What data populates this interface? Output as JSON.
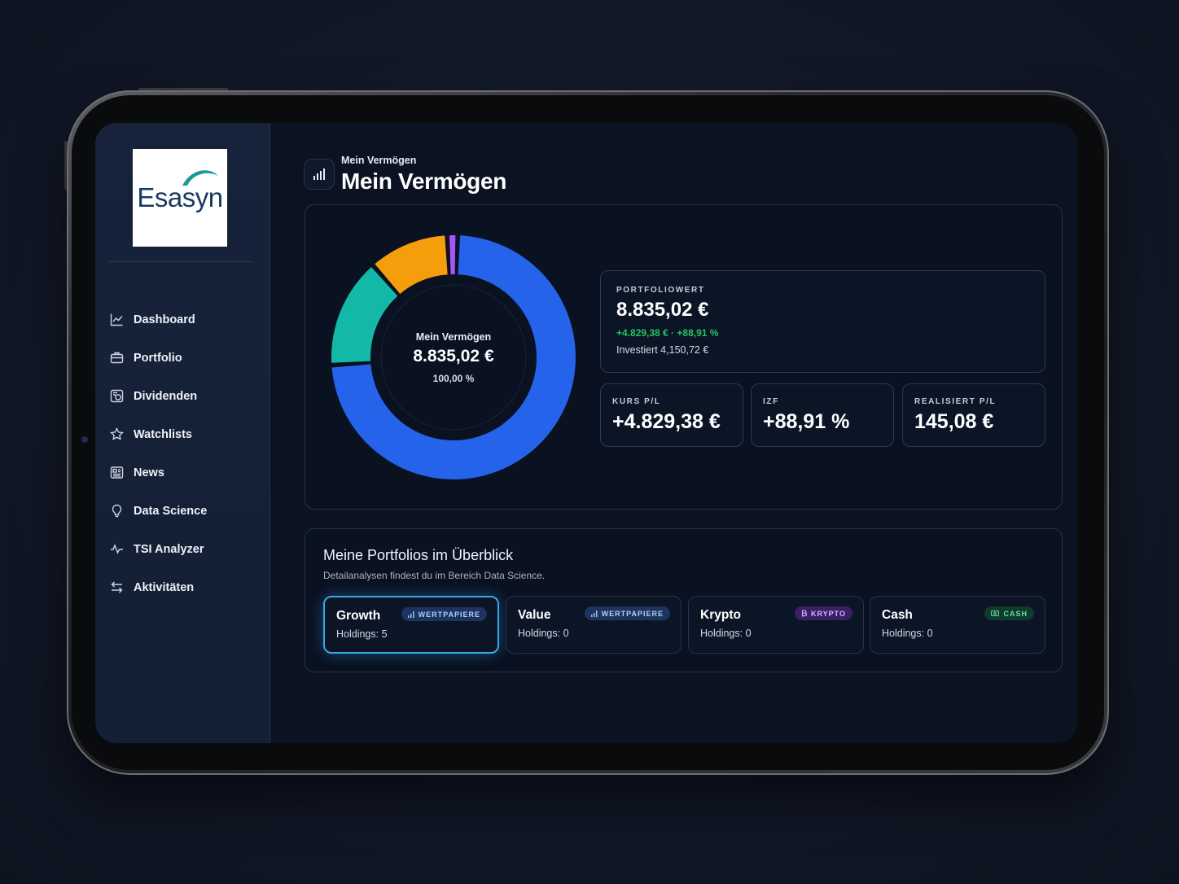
{
  "app": {
    "logo_text": "Esasyn"
  },
  "sidebar": {
    "items": [
      {
        "label": "Dashboard",
        "icon": "chart-line-icon"
      },
      {
        "label": "Portfolio",
        "icon": "briefcase-icon"
      },
      {
        "label": "Dividenden",
        "icon": "dividend-icon"
      },
      {
        "label": "Watchlists",
        "icon": "star-icon"
      },
      {
        "label": "News",
        "icon": "newspaper-icon"
      },
      {
        "label": "Data Science",
        "icon": "lightbulb-icon"
      },
      {
        "label": "TSI Analyzer",
        "icon": "activity-icon"
      },
      {
        "label": "Aktivitäten",
        "icon": "arrows-exchange-icon"
      }
    ]
  },
  "header": {
    "subtitle": "Mein Vermögen",
    "title": "Mein Vermögen",
    "icon": "bar-signal-icon"
  },
  "donut": {
    "center_label": "Mein Vermögen",
    "center_value": "8.835,02 €",
    "center_pct": "100,00 %"
  },
  "chart_data": {
    "type": "pie",
    "donut": true,
    "values": [
      68.5,
      13.6,
      9.9,
      1.3
    ],
    "colors": [
      "#2563eb",
      "#14b8a6",
      "#f59e0b",
      "#a855f7"
    ]
  },
  "stats": {
    "portfolio": {
      "caption": "PORTFOLIOWERT",
      "value": "8.835,02 €",
      "delta": "+4.829,38 € · +88,91 %",
      "invested": "Investiert 4,150,72 €"
    },
    "kurs": {
      "caption": "KURS P/L",
      "value": "+4.829,38 €"
    },
    "izf": {
      "caption": "IZF",
      "value": "+88,91 %"
    },
    "realisiert": {
      "caption": "REALISIERT P/L",
      "value": "145,08 €"
    }
  },
  "portfolios": {
    "title": "Meine Portfolios im Überblick",
    "subtitle": "Detailanalysen findest du im Bereich Data Science.",
    "cards": [
      {
        "name": "Growth",
        "holdings": "Holdings: 5",
        "badge": "WERTPAPIERE",
        "badge_color": "#1c3560"
      },
      {
        "name": "Value",
        "holdings": "Holdings: 0",
        "badge": "WERTPAPIERE",
        "badge_color": "#1c3560"
      },
      {
        "name": "Krypto",
        "holdings": "Holdings: 0",
        "badge": "KRYPTO",
        "badge_color": "#3b1f66"
      },
      {
        "name": "Cash",
        "holdings": "Holdings: 0",
        "badge": "CASH",
        "badge_color": "#0f3a2c"
      }
    ]
  }
}
